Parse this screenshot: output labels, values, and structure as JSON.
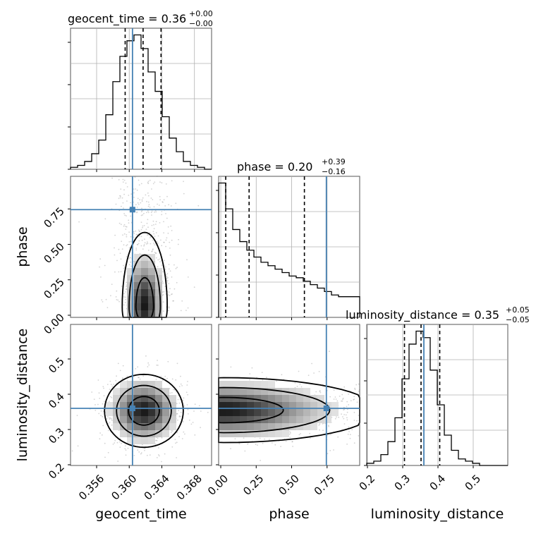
{
  "chart_data": {
    "type": "corner",
    "colors": {
      "truth": "#4682b4",
      "histogram": "#000000",
      "samples": "#808080"
    },
    "parameters": [
      {
        "name": "geocent_time",
        "label": "geocent_time",
        "title": {
          "prefix": "geocent_time = ",
          "median": "0.36",
          "plus": "+0.00",
          "minus": "−0.00"
        },
        "range": [
          0.3528,
          0.3701
        ],
        "ticks": [
          0.356,
          0.36,
          0.364,
          0.368
        ],
        "tick_labels": [
          "0.356",
          "0.360",
          "0.364",
          "0.368"
        ],
        "truth": 0.3604,
        "quantiles": [
          0.3595,
          0.3617,
          0.3639
        ],
        "hist_edges_start": 0.3528,
        "hist_bin_width": 0.000865,
        "hist_counts": [
          1,
          2,
          4,
          8,
          15,
          28,
          45,
          58,
          66,
          69,
          62,
          50,
          40,
          27,
          16,
          9,
          4,
          2,
          1,
          0
        ]
      },
      {
        "name": "phase",
        "label": "phase",
        "title": {
          "prefix": "phase = ",
          "median": "0.20",
          "plus": "+0.39",
          "minus": "−0.16"
        },
        "range": [
          -0.015,
          0.98
        ],
        "ticks": [
          0.0,
          0.25,
          0.5,
          0.75
        ],
        "tick_labels": [
          "0.00",
          "0.25",
          "0.50",
          "0.75"
        ],
        "truth": 0.745,
        "quantiles": [
          0.035,
          0.2,
          0.59
        ],
        "hist_edges_start": -0.015,
        "hist_bin_width": 0.04975,
        "hist_counts": [
          78,
          63,
          51,
          44,
          39,
          35,
          32,
          30,
          28,
          26,
          24,
          23,
          21,
          19,
          17,
          15,
          13,
          12,
          12,
          12
        ]
      },
      {
        "name": "luminosity_distance",
        "label": "luminosity_distance",
        "title": {
          "prefix": "luminosity_distance = ",
          "median": "0.35",
          "plus": "+0.05",
          "minus": "−0.05"
        },
        "range": [
          0.198,
          0.598
        ],
        "ticks": [
          0.2,
          0.3,
          0.4,
          0.5
        ],
        "tick_labels": [
          "0.2",
          "0.3",
          "0.4",
          "0.5"
        ],
        "truth": 0.36,
        "quantiles": [
          0.305,
          0.352,
          0.405
        ],
        "hist_edges_start": 0.198,
        "hist_bin_width": 0.02,
        "hist_counts": [
          1,
          2,
          5,
          11,
          22,
          40,
          56,
          62,
          59,
          44,
          28,
          14,
          7,
          3,
          2,
          1,
          0,
          0,
          0,
          0
        ]
      }
    ],
    "pairs": [
      {
        "x": "geocent_time",
        "y": "phase",
        "truth": [
          0.3604,
          0.745
        ],
        "density_center": [
          0.3619,
          0.06
        ],
        "density_spread": [
          0.0012,
          0.12
        ]
      },
      {
        "x": "geocent_time",
        "y": "luminosity_distance",
        "truth": [
          0.3604,
          0.36
        ],
        "density_center": [
          0.3618,
          0.353
        ],
        "density_spread": [
          0.0021,
          0.045
        ]
      },
      {
        "x": "phase",
        "y": "luminosity_distance",
        "truth": [
          0.745,
          0.36
        ],
        "density_center": [
          0.02,
          0.355
        ],
        "density_spread": [
          0.26,
          0.04
        ]
      }
    ],
    "grid": true,
    "legend": "none"
  }
}
